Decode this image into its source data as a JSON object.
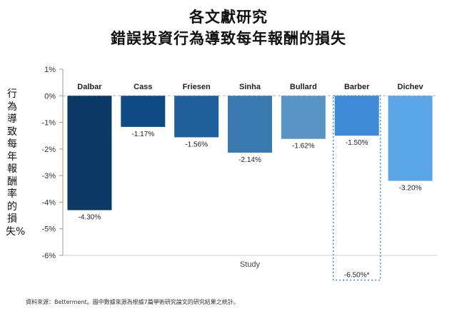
{
  "titles": {
    "line1": "各文獻研究",
    "line2": "錯誤投資行為導致每年報酬的損失"
  },
  "y_axis_label": "行為導致每年報酬率的損失%",
  "footnote": "資料來源：Betterment。圖中數據來源為根據7篇學術研究論文的研究結果之統計。",
  "colors": {
    "Dalbar": "#0c3a66",
    "Cass": "#0f4a82",
    "Friesen": "#1f5f9a",
    "Sinha": "#3a78b0",
    "Bullard": "#5894c6",
    "Barber": "#3f8ad6",
    "Dichev": "#5aa5e6",
    "axis": "#999999",
    "grid_dotted": "#3f8ad6"
  },
  "chart_data": {
    "type": "bar",
    "xlabel": "Study",
    "ylabel": "行為導致每年報酬率的損失%",
    "categories": [
      "Dalbar",
      "Cass",
      "Friesen",
      "Sinha",
      "Bullard",
      "Barber",
      "Dichev"
    ],
    "values": [
      -4.3,
      -1.17,
      -1.56,
      -2.14,
      -1.62,
      -1.5,
      -3.2
    ],
    "value_labels": [
      "-4.30%",
      "-1.17%",
      "-1.56%",
      "-2.14%",
      "-1.62%",
      "-1.50%",
      "-3.20%"
    ],
    "extra_ranges": [
      {
        "category": "Barber",
        "value": -6.5,
        "label": "-6.50%*",
        "style": "dotted"
      }
    ],
    "yticks": [
      1,
      0,
      -1,
      -2,
      -3,
      -4,
      -5,
      -6
    ],
    "ytick_labels": [
      "1%",
      "0%",
      "-1%",
      "-2%",
      "-3%",
      "-4%",
      "-5%",
      "-6%"
    ],
    "ylim": [
      -6,
      1
    ],
    "zero_line": "dashed",
    "grid": false
  }
}
